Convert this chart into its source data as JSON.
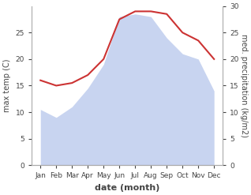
{
  "months": [
    "Jan",
    "Feb",
    "Mar",
    "Apr",
    "May",
    "Jun",
    "Jul",
    "Aug",
    "Sep",
    "Oct",
    "Nov",
    "Dec"
  ],
  "temp_max": [
    10.5,
    9.0,
    11.0,
    14.5,
    19.0,
    28.0,
    28.5,
    28.0,
    24.0,
    21.0,
    20.0,
    14.0
  ],
  "precip": [
    16.0,
    15.0,
    15.5,
    17.0,
    20.0,
    27.5,
    29.0,
    29.0,
    28.5,
    25.0,
    23.5,
    20.0
  ],
  "temp_fill_color": "#c8d4f0",
  "precip_line_color": "#cc3333",
  "background_color": "#ffffff",
  "xlabel": "date (month)",
  "ylabel_left": "max temp (C)",
  "ylabel_right": "med. precipitation (kg/m2)",
  "ylim_left": [
    0,
    30
  ],
  "ylim_right": [
    0,
    30
  ],
  "yticks_left": [
    0,
    5,
    10,
    15,
    20,
    25
  ],
  "yticks_right": [
    0,
    5,
    10,
    15,
    20,
    25,
    30
  ],
  "spine_color": "#aaaaaa",
  "text_color": "#444444",
  "label_fontsize": 7,
  "tick_fontsize": 6.5,
  "xlabel_fontsize": 8
}
